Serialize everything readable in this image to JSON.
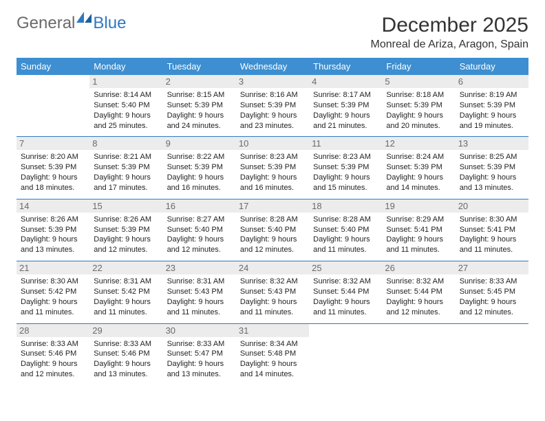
{
  "brand": {
    "part1": "General",
    "part2": "Blue"
  },
  "title": "December 2025",
  "location": "Monreal de Ariza, Aragon, Spain",
  "colors": {
    "header_bg": "#3d8fd1",
    "border": "#2f78c2",
    "daynum_bg": "#ececec",
    "daynum_text": "#6a6a6a",
    "text": "#222222",
    "logo_gray": "#6a6a6a",
    "logo_blue": "#2f78c2"
  },
  "weekdays": [
    "Sunday",
    "Monday",
    "Tuesday",
    "Wednesday",
    "Thursday",
    "Friday",
    "Saturday"
  ],
  "weeks": [
    [
      {
        "day": "",
        "sunrise": "",
        "sunset": "",
        "daylight": ""
      },
      {
        "day": "1",
        "sunrise": "Sunrise: 8:14 AM",
        "sunset": "Sunset: 5:40 PM",
        "daylight": "Daylight: 9 hours and 25 minutes."
      },
      {
        "day": "2",
        "sunrise": "Sunrise: 8:15 AM",
        "sunset": "Sunset: 5:39 PM",
        "daylight": "Daylight: 9 hours and 24 minutes."
      },
      {
        "day": "3",
        "sunrise": "Sunrise: 8:16 AM",
        "sunset": "Sunset: 5:39 PM",
        "daylight": "Daylight: 9 hours and 23 minutes."
      },
      {
        "day": "4",
        "sunrise": "Sunrise: 8:17 AM",
        "sunset": "Sunset: 5:39 PM",
        "daylight": "Daylight: 9 hours and 21 minutes."
      },
      {
        "day": "5",
        "sunrise": "Sunrise: 8:18 AM",
        "sunset": "Sunset: 5:39 PM",
        "daylight": "Daylight: 9 hours and 20 minutes."
      },
      {
        "day": "6",
        "sunrise": "Sunrise: 8:19 AM",
        "sunset": "Sunset: 5:39 PM",
        "daylight": "Daylight: 9 hours and 19 minutes."
      }
    ],
    [
      {
        "day": "7",
        "sunrise": "Sunrise: 8:20 AM",
        "sunset": "Sunset: 5:39 PM",
        "daylight": "Daylight: 9 hours and 18 minutes."
      },
      {
        "day": "8",
        "sunrise": "Sunrise: 8:21 AM",
        "sunset": "Sunset: 5:39 PM",
        "daylight": "Daylight: 9 hours and 17 minutes."
      },
      {
        "day": "9",
        "sunrise": "Sunrise: 8:22 AM",
        "sunset": "Sunset: 5:39 PM",
        "daylight": "Daylight: 9 hours and 16 minutes."
      },
      {
        "day": "10",
        "sunrise": "Sunrise: 8:23 AM",
        "sunset": "Sunset: 5:39 PM",
        "daylight": "Daylight: 9 hours and 16 minutes."
      },
      {
        "day": "11",
        "sunrise": "Sunrise: 8:23 AM",
        "sunset": "Sunset: 5:39 PM",
        "daylight": "Daylight: 9 hours and 15 minutes."
      },
      {
        "day": "12",
        "sunrise": "Sunrise: 8:24 AM",
        "sunset": "Sunset: 5:39 PM",
        "daylight": "Daylight: 9 hours and 14 minutes."
      },
      {
        "day": "13",
        "sunrise": "Sunrise: 8:25 AM",
        "sunset": "Sunset: 5:39 PM",
        "daylight": "Daylight: 9 hours and 13 minutes."
      }
    ],
    [
      {
        "day": "14",
        "sunrise": "Sunrise: 8:26 AM",
        "sunset": "Sunset: 5:39 PM",
        "daylight": "Daylight: 9 hours and 13 minutes."
      },
      {
        "day": "15",
        "sunrise": "Sunrise: 8:26 AM",
        "sunset": "Sunset: 5:39 PM",
        "daylight": "Daylight: 9 hours and 12 minutes."
      },
      {
        "day": "16",
        "sunrise": "Sunrise: 8:27 AM",
        "sunset": "Sunset: 5:40 PM",
        "daylight": "Daylight: 9 hours and 12 minutes."
      },
      {
        "day": "17",
        "sunrise": "Sunrise: 8:28 AM",
        "sunset": "Sunset: 5:40 PM",
        "daylight": "Daylight: 9 hours and 12 minutes."
      },
      {
        "day": "18",
        "sunrise": "Sunrise: 8:28 AM",
        "sunset": "Sunset: 5:40 PM",
        "daylight": "Daylight: 9 hours and 11 minutes."
      },
      {
        "day": "19",
        "sunrise": "Sunrise: 8:29 AM",
        "sunset": "Sunset: 5:41 PM",
        "daylight": "Daylight: 9 hours and 11 minutes."
      },
      {
        "day": "20",
        "sunrise": "Sunrise: 8:30 AM",
        "sunset": "Sunset: 5:41 PM",
        "daylight": "Daylight: 9 hours and 11 minutes."
      }
    ],
    [
      {
        "day": "21",
        "sunrise": "Sunrise: 8:30 AM",
        "sunset": "Sunset: 5:42 PM",
        "daylight": "Daylight: 9 hours and 11 minutes."
      },
      {
        "day": "22",
        "sunrise": "Sunrise: 8:31 AM",
        "sunset": "Sunset: 5:42 PM",
        "daylight": "Daylight: 9 hours and 11 minutes."
      },
      {
        "day": "23",
        "sunrise": "Sunrise: 8:31 AM",
        "sunset": "Sunset: 5:43 PM",
        "daylight": "Daylight: 9 hours and 11 minutes."
      },
      {
        "day": "24",
        "sunrise": "Sunrise: 8:32 AM",
        "sunset": "Sunset: 5:43 PM",
        "daylight": "Daylight: 9 hours and 11 minutes."
      },
      {
        "day": "25",
        "sunrise": "Sunrise: 8:32 AM",
        "sunset": "Sunset: 5:44 PM",
        "daylight": "Daylight: 9 hours and 11 minutes."
      },
      {
        "day": "26",
        "sunrise": "Sunrise: 8:32 AM",
        "sunset": "Sunset: 5:44 PM",
        "daylight": "Daylight: 9 hours and 12 minutes."
      },
      {
        "day": "27",
        "sunrise": "Sunrise: 8:33 AM",
        "sunset": "Sunset: 5:45 PM",
        "daylight": "Daylight: 9 hours and 12 minutes."
      }
    ],
    [
      {
        "day": "28",
        "sunrise": "Sunrise: 8:33 AM",
        "sunset": "Sunset: 5:46 PM",
        "daylight": "Daylight: 9 hours and 12 minutes."
      },
      {
        "day": "29",
        "sunrise": "Sunrise: 8:33 AM",
        "sunset": "Sunset: 5:46 PM",
        "daylight": "Daylight: 9 hours and 13 minutes."
      },
      {
        "day": "30",
        "sunrise": "Sunrise: 8:33 AM",
        "sunset": "Sunset: 5:47 PM",
        "daylight": "Daylight: 9 hours and 13 minutes."
      },
      {
        "day": "31",
        "sunrise": "Sunrise: 8:34 AM",
        "sunset": "Sunset: 5:48 PM",
        "daylight": "Daylight: 9 hours and 14 minutes."
      },
      {
        "day": "",
        "sunrise": "",
        "sunset": "",
        "daylight": ""
      },
      {
        "day": "",
        "sunrise": "",
        "sunset": "",
        "daylight": ""
      },
      {
        "day": "",
        "sunrise": "",
        "sunset": "",
        "daylight": ""
      }
    ]
  ]
}
